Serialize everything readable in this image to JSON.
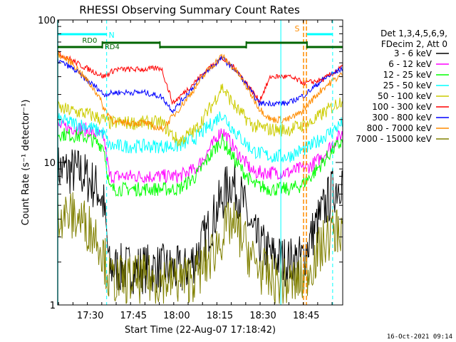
{
  "chart_data": {
    "type": "line",
    "title": "RHESSI Observing Summary Count Rates",
    "xlabel": "Start Time (22-Aug-07 17:18:42)",
    "ylabel": "Count Rate (s⁻¹ detector⁻¹)",
    "x_ticks": [
      "17:30",
      "17:45",
      "18:00",
      "18:15",
      "18:30",
      "18:45"
    ],
    "x_tick_minutes": [
      11.3,
      26.3,
      41.3,
      56.3,
      71.3,
      86.3
    ],
    "xlim_minutes": [
      0,
      99
    ],
    "y_scale": "log",
    "ylim": [
      1,
      100
    ],
    "y_ticks": [
      "1",
      "10",
      "100"
    ],
    "legend_header": [
      "Det 1,3,4,5,6,9,",
      "FDecim 2, Att 0"
    ],
    "series": [
      {
        "name": "3 - 6 keV",
        "color": "#000000",
        "x": [
          0,
          8,
          14,
          16,
          18,
          30,
          36,
          44,
          48,
          52,
          56,
          60,
          64,
          68,
          74,
          80,
          85,
          88,
          92,
          95,
          99
        ],
        "y": [
          9,
          8.5,
          6.5,
          5,
          1.8,
          1.8,
          1.8,
          1.7,
          2.2,
          3.2,
          5,
          7.5,
          5.5,
          3,
          2.2,
          2,
          2.1,
          3,
          4.5,
          6,
          8
        ]
      },
      {
        "name": "6 - 12 keV",
        "color": "#ff00ff",
        "x": [
          0,
          10,
          16,
          18,
          30,
          36,
          42,
          48,
          54,
          57,
          62,
          68,
          74,
          80,
          84,
          88,
          92,
          96,
          99
        ],
        "y": [
          18,
          17,
          15,
          8,
          8,
          8,
          8,
          9,
          13.5,
          17,
          12,
          8.5,
          8.5,
          8.5,
          9,
          9.5,
          11,
          14,
          16
        ]
      },
      {
        "name": "12 - 25 keV",
        "color": "#00ff00",
        "x": [
          0,
          10,
          16,
          18,
          30,
          36,
          42,
          48,
          54,
          57,
          62,
          68,
          74,
          80,
          84,
          88,
          92,
          96,
          99
        ],
        "y": [
          16,
          15,
          13,
          6.5,
          6.5,
          6.5,
          6.5,
          8,
          12,
          14.5,
          10,
          7,
          6.5,
          6.5,
          6.8,
          8,
          10,
          12.5,
          14
        ]
      },
      {
        "name": "25 - 50 keV",
        "color": "#00ffff",
        "x": [
          0,
          10,
          16,
          18,
          30,
          36,
          42,
          48,
          54,
          57,
          62,
          68,
          74,
          80,
          84,
          88,
          92,
          96,
          99
        ],
        "y": [
          20,
          18,
          16,
          13,
          13,
          13,
          13,
          15,
          19,
          22,
          16,
          12,
          11,
          11,
          12,
          13,
          15,
          17,
          19
        ]
      },
      {
        "name": "50 - 100 keV",
        "color": "#cccc00",
        "x": [
          0,
          10,
          16,
          18,
          30,
          36,
          42,
          48,
          54,
          57,
          62,
          68,
          74,
          80,
          84,
          88,
          92,
          96,
          99
        ],
        "y": [
          24,
          22,
          20,
          19,
          19,
          19,
          14,
          17,
          26,
          34,
          24,
          18,
          17,
          17,
          18,
          19,
          22,
          25,
          28
        ]
      },
      {
        "name": "100 - 300 keV",
        "color": "#ff0000",
        "x": [
          0,
          3,
          8,
          14,
          16,
          20,
          30,
          36,
          40,
          46,
          52,
          57,
          62,
          66,
          70,
          74,
          80,
          86,
          92,
          99
        ],
        "y": [
          58,
          55,
          48,
          42,
          40,
          45,
          45,
          46,
          26,
          34,
          45,
          54,
          45,
          35,
          27,
          40,
          40,
          36,
          38,
          47
        ]
      },
      {
        "name": "300 - 800 keV",
        "color": "#0000ff",
        "x": [
          0,
          5,
          10,
          14,
          16,
          20,
          30,
          36,
          40,
          46,
          52,
          57,
          62,
          66,
          70,
          74,
          80,
          86,
          92,
          99
        ],
        "y": [
          52,
          46,
          38,
          33,
          30,
          31,
          31,
          29,
          23,
          32,
          44,
          54,
          44,
          34,
          26,
          26,
          26,
          30,
          38,
          46
        ]
      },
      {
        "name": "800 - 7000 keV",
        "color": "#ff8c00",
        "x": [
          0,
          5,
          10,
          14,
          16,
          20,
          30,
          36,
          40,
          46,
          52,
          57,
          62,
          66,
          70,
          74,
          80,
          84,
          88,
          92,
          99
        ],
        "y": [
          58,
          50,
          38,
          30,
          24,
          19,
          19,
          17,
          21,
          30,
          44,
          56,
          44,
          33,
          24,
          20,
          20,
          22,
          27,
          33,
          42
        ]
      },
      {
        "name": "7000 - 15000 keV",
        "color": "#808000",
        "x": [
          0,
          8,
          14,
          16,
          18,
          30,
          36,
          44,
          48,
          52,
          56,
          60,
          64,
          68,
          74,
          80,
          85,
          88,
          92,
          95,
          99
        ],
        "y": [
          4.5,
          4,
          3,
          2.2,
          1.5,
          1.5,
          1.5,
          1.5,
          1.6,
          2,
          2.8,
          3.8,
          3,
          2,
          1.5,
          1.4,
          1.5,
          1.9,
          2.6,
          3.2,
          3.5
        ]
      }
    ],
    "annotations": {
      "night_labels": [
        "N",
        "S"
      ],
      "attenuator_labels": [
        "RD0",
        "RD4"
      ],
      "cyan_dashed_lines_minutes": [
        17,
        95.5
      ],
      "cyan_solid_line_minutes": 77.5,
      "orange_dashed_lines_minutes": [
        85.4,
        86.4
      ]
    },
    "colors": {
      "night_bar": "#00ffff",
      "decimation_bar": "#006400",
      "flag_orange": "#ff8c00"
    },
    "footer_timestamp": "16-Oct-2021 09:14"
  }
}
